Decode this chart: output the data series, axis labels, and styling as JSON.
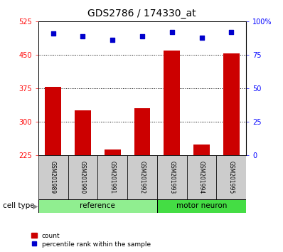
{
  "title": "GDS2786 / 174330_at",
  "samples": [
    "GSM201989",
    "GSM201990",
    "GSM201991",
    "GSM201992",
    "GSM201993",
    "GSM201994",
    "GSM201995"
  ],
  "counts": [
    378,
    325,
    238,
    330,
    460,
    248,
    453
  ],
  "percentiles": [
    91,
    89,
    86,
    89,
    92,
    88,
    92
  ],
  "groups": [
    "reference",
    "reference",
    "reference",
    "reference",
    "motor neuron",
    "motor neuron",
    "motor neuron"
  ],
  "left_ylim": [
    225,
    525
  ],
  "left_yticks": [
    225,
    300,
    375,
    450,
    525
  ],
  "right_ylim": [
    0,
    100
  ],
  "right_yticks": [
    0,
    25,
    50,
    75,
    100
  ],
  "right_yticklabels": [
    "0",
    "25",
    "50",
    "75",
    "100%"
  ],
  "bar_color": "#CC0000",
  "dot_color": "#0000CC",
  "bg_color": "#ffffff",
  "cell_type_label": "cell type",
  "legend_count": "count",
  "legend_percentile": "percentile rank within the sample",
  "reference_color": "#90EE90",
  "motor_neuron_color": "#44DD44",
  "gridline_values": [
    300,
    375,
    450
  ],
  "title_fontsize": 10,
  "tick_fontsize": 7,
  "label_fontsize": 7,
  "cell_type_fontsize": 7.5,
  "legend_fontsize": 6.5
}
